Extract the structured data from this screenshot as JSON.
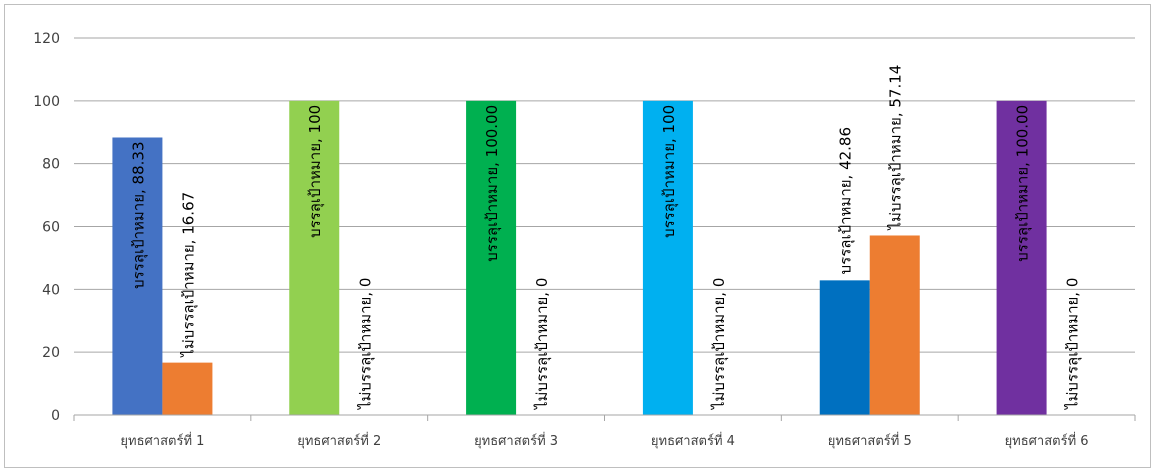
{
  "chart_data": {
    "type": "bar",
    "categories": [
      "ยุทธศาสตร์ที่ 1",
      "ยุทธศาสตร์ที่ 2",
      "ยุทธศาสตร์ที่ 3",
      "ยุทธศาสตร์ที่ 4",
      "ยุทธศาสตร์ที่ 5",
      "ยุทธศาสตร์ที่ 6"
    ],
    "series": [
      {
        "name": "บรรลุเป้าหมาย",
        "values": [
          88.33,
          100,
          100,
          100,
          42.86,
          100
        ],
        "labels": [
          "บรรลุเป้าหมาย, 88.33",
          "บรรลุเป้าหมาย, 100",
          "บรรลุเป้าหมาย, 100.00",
          "บรรลุเป้าหมาย, 100",
          "บรรลุเป้าหมาย, 42.86",
          "บรรลุเป้าหมาย, 100.00"
        ],
        "colors": [
          "#4472c4",
          "#92d050",
          "#00b050",
          "#00b0f0",
          "#0070c0",
          "#7030a0"
        ]
      },
      {
        "name": "ไม่บรรลุเป้าหมาย",
        "values": [
          16.67,
          0,
          0,
          0,
          57.14,
          0
        ],
        "labels": [
          "ไม่บรรลุเป้าหมาย, 16.67",
          "ไม่บรรลุเป้าหมาย, 0",
          "ไม่บรรลุเป้าหมาย, 0",
          "ไม่บรรลุเป้าหมาย, 0",
          "ไม่บรรลุเป้าหมาย, 57.14",
          "ไม่บรรลุเป้าหมาย, 0"
        ],
        "colors": [
          "#ed7d31",
          "#ed7d31",
          "#ed7d31",
          "#ed7d31",
          "#ed7d31",
          "#ed7d31"
        ]
      }
    ],
    "y_ticks": [
      "0",
      "20",
      "40",
      "60",
      "80",
      "100",
      "120"
    ],
    "ylim": [
      0,
      120
    ],
    "grid": true,
    "legend": "none",
    "colors": {
      "gridline": "#a6a6a6",
      "axis": "#a6a6a6"
    }
  }
}
